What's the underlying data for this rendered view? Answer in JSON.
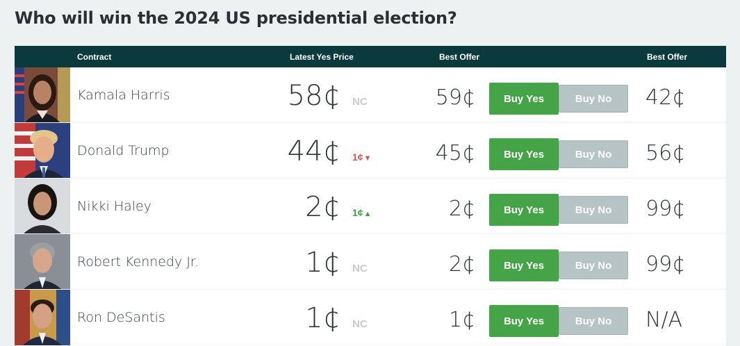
{
  "page": {
    "title": "Who will win the 2024 US presidential election?"
  },
  "table": {
    "headers": {
      "contract": "Contract",
      "latest_yes_price": "Latest Yes Price",
      "best_offer_yes": "Best Offer",
      "best_offer_no": "Best Offer"
    },
    "buy_yes_label": "Buy Yes",
    "buy_no_label": "Buy No",
    "rows": [
      {
        "name": "Kamala Harris",
        "price": "58¢",
        "change": "NC",
        "change_dir": "none",
        "best_offer_yes": "59¢",
        "best_offer_no": "42¢"
      },
      {
        "name": "Donald Trump",
        "price": "44¢",
        "change": "1¢",
        "change_dir": "down",
        "best_offer_yes": "45¢",
        "best_offer_no": "56¢"
      },
      {
        "name": "Nikki Haley",
        "price": "2¢",
        "change": "1¢",
        "change_dir": "up",
        "best_offer_yes": "2¢",
        "best_offer_no": "99¢"
      },
      {
        "name": "Robert Kennedy Jr.",
        "price": "1¢",
        "change": "NC",
        "change_dir": "none",
        "best_offer_yes": "2¢",
        "best_offer_no": "99¢"
      },
      {
        "name": "Ron DeSantis",
        "price": "1¢",
        "change": "NC",
        "change_dir": "none",
        "best_offer_yes": "1¢",
        "best_offer_no": "N/A"
      }
    ]
  },
  "colors": {
    "header_bg": "#0b3a3c",
    "buy_yes_bg": "#45a447",
    "buy_no_bg": "#b7c4c5",
    "change_down": "#d9534f",
    "change_up": "#3f9e43"
  }
}
